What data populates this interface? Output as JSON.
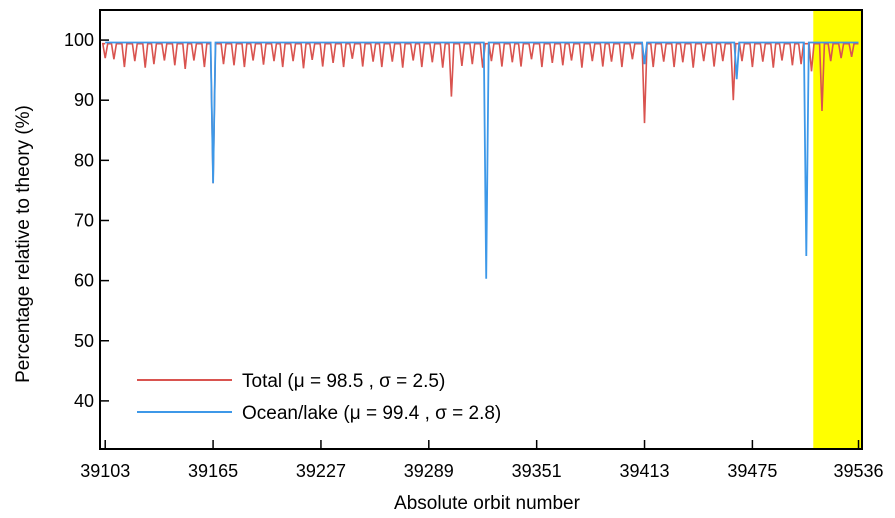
{
  "chart_data": {
    "type": "line",
    "xlabel": "Absolute orbit number",
    "ylabel": "Percentage relative to theory (%)",
    "xlim": [
      39100,
      39538
    ],
    "ylim": [
      32,
      105
    ],
    "x_ticks": [
      39103,
      39165,
      39227,
      39289,
      39351,
      39413,
      39475,
      39536
    ],
    "y_ticks": [
      40,
      50,
      60,
      70,
      80,
      90,
      100
    ],
    "highlight_region": {
      "x_start": 39510,
      "x_end": 39538,
      "color": "#ffff00"
    },
    "legend_position": "bottom-left",
    "series": [
      {
        "name": "Total (μ = 98.5 , σ = 2.5)",
        "color": "#d9534f",
        "baseline": 99.4,
        "dips": [
          [
            39103,
            97.0
          ],
          [
            39108,
            96.8
          ],
          [
            39114,
            95.5
          ],
          [
            39120,
            96.5
          ],
          [
            39126,
            95.4
          ],
          [
            39131,
            96.0
          ],
          [
            39137,
            96.6
          ],
          [
            39143,
            95.8
          ],
          [
            39149,
            95.2
          ],
          [
            39154,
            96.6
          ],
          [
            39160,
            95.5
          ],
          [
            39165,
            76.2
          ],
          [
            39171,
            96.0
          ],
          [
            39177,
            95.8
          ],
          [
            39183,
            95.5
          ],
          [
            39188,
            96.6
          ],
          [
            39194,
            95.9
          ],
          [
            39200,
            96.5
          ],
          [
            39205,
            95.5
          ],
          [
            39211,
            96.5
          ],
          [
            39217,
            95.3
          ],
          [
            39222,
            96.7
          ],
          [
            39228,
            95.6
          ],
          [
            39234,
            96.2
          ],
          [
            39240,
            95.5
          ],
          [
            39245,
            96.9
          ],
          [
            39251,
            95.6
          ],
          [
            39257,
            96.4
          ],
          [
            39262,
            95.5
          ],
          [
            39268,
            96.4
          ],
          [
            39274,
            95.4
          ],
          [
            39280,
            96.6
          ],
          [
            39285,
            95.5
          ],
          [
            39291,
            96.3
          ],
          [
            39297,
            95.4
          ],
          [
            39302,
            90.6
          ],
          [
            39308,
            95.7
          ],
          [
            39314,
            96.0
          ],
          [
            39320,
            95.4
          ],
          [
            39325,
            96.5
          ],
          [
            39331,
            95.6
          ],
          [
            39337,
            96.3
          ],
          [
            39342,
            95.6
          ],
          [
            39348,
            96.8
          ],
          [
            39354,
            95.5
          ],
          [
            39360,
            96.2
          ],
          [
            39366,
            95.8
          ],
          [
            39371,
            96.6
          ],
          [
            39377,
            95.4
          ],
          [
            39383,
            96.5
          ],
          [
            39389,
            95.6
          ],
          [
            39394,
            96.4
          ],
          [
            39400,
            95.5
          ],
          [
            39406,
            96.8
          ],
          [
            39413,
            86.2
          ],
          [
            39418,
            95.5
          ],
          [
            39424,
            96.4
          ],
          [
            39430,
            95.5
          ],
          [
            39435,
            96.3
          ],
          [
            39441,
            95.4
          ],
          [
            39447,
            96.5
          ],
          [
            39453,
            95.6
          ],
          [
            39458,
            96.5
          ],
          [
            39464,
            90.0
          ],
          [
            39469,
            96.5
          ],
          [
            39475,
            95.5
          ],
          [
            39481,
            96.4
          ],
          [
            39487,
            95.4
          ],
          [
            39492,
            96.6
          ],
          [
            39498,
            95.8
          ],
          [
            39503,
            96.0
          ],
          [
            39509,
            94.8
          ],
          [
            39515,
            88.2
          ],
          [
            39520,
            96.5
          ],
          [
            39526,
            97.0
          ],
          [
            39532,
            97.2
          ]
        ]
      },
      {
        "name": "Ocean/lake (μ = 99.4 , σ = 2.8)",
        "color": "#3d98e8",
        "baseline": 99.6,
        "dips": [
          [
            39165,
            76.2
          ],
          [
            39322,
            60.3
          ],
          [
            39413,
            96.0
          ],
          [
            39466,
            93.5
          ],
          [
            39506,
            64.1
          ]
        ]
      }
    ]
  }
}
